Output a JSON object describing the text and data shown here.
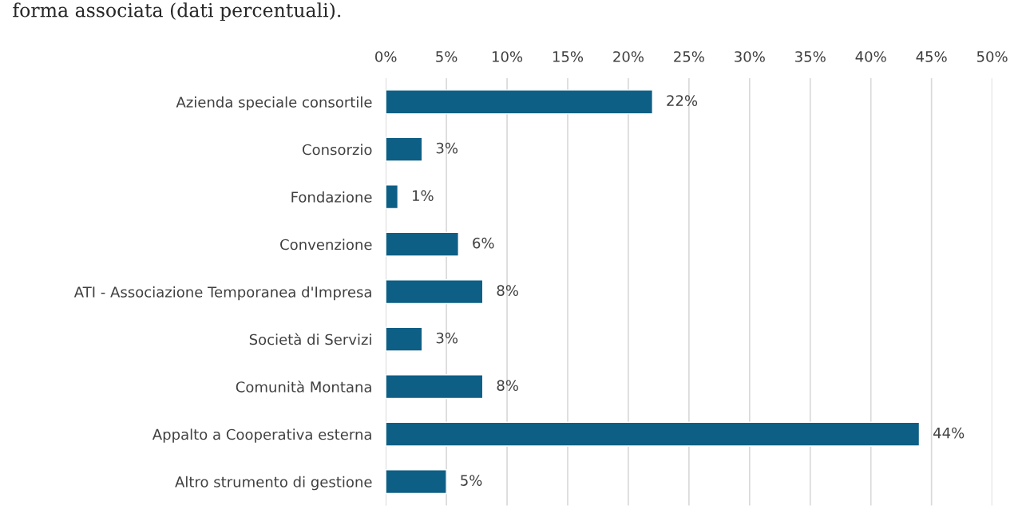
{
  "chart_data": {
    "type": "bar",
    "orientation": "horizontal",
    "annotations": [
      "forma associata (dati percentuali)."
    ],
    "categories": [
      "Azienda speciale consortile",
      "Consorzio",
      "Fondazione",
      "Convenzione",
      "ATI - Associazione Temporanea d'Impresa",
      "Società di Servizi",
      "Comunità Montana",
      "Appalto a Cooperativa esterna",
      "Altro strumento di gestione"
    ],
    "values": [
      22,
      3,
      1,
      6,
      8,
      3,
      8,
      44,
      5
    ],
    "value_labels": [
      "22%",
      "3%",
      "1%",
      "6%",
      "8%",
      "3%",
      "8%",
      "44%",
      "5%"
    ],
    "color": "#0e5f85",
    "xlim": [
      0,
      50
    ],
    "xticks": [
      {
        "value": 0,
        "label": "0%"
      },
      {
        "value": 5,
        "label": "5%"
      },
      {
        "value": 10,
        "label": "10%"
      },
      {
        "value": 15,
        "label": "15%"
      },
      {
        "value": 20,
        "label": "20%"
      },
      {
        "value": 25,
        "label": "25%"
      },
      {
        "value": 30,
        "label": "30%"
      },
      {
        "value": 35,
        "label": "35%"
      },
      {
        "value": 40,
        "label": "40%"
      },
      {
        "value": 45,
        "label": "45%"
      },
      {
        "value": 50,
        "label": "50%"
      }
    ],
    "grid": "x"
  }
}
